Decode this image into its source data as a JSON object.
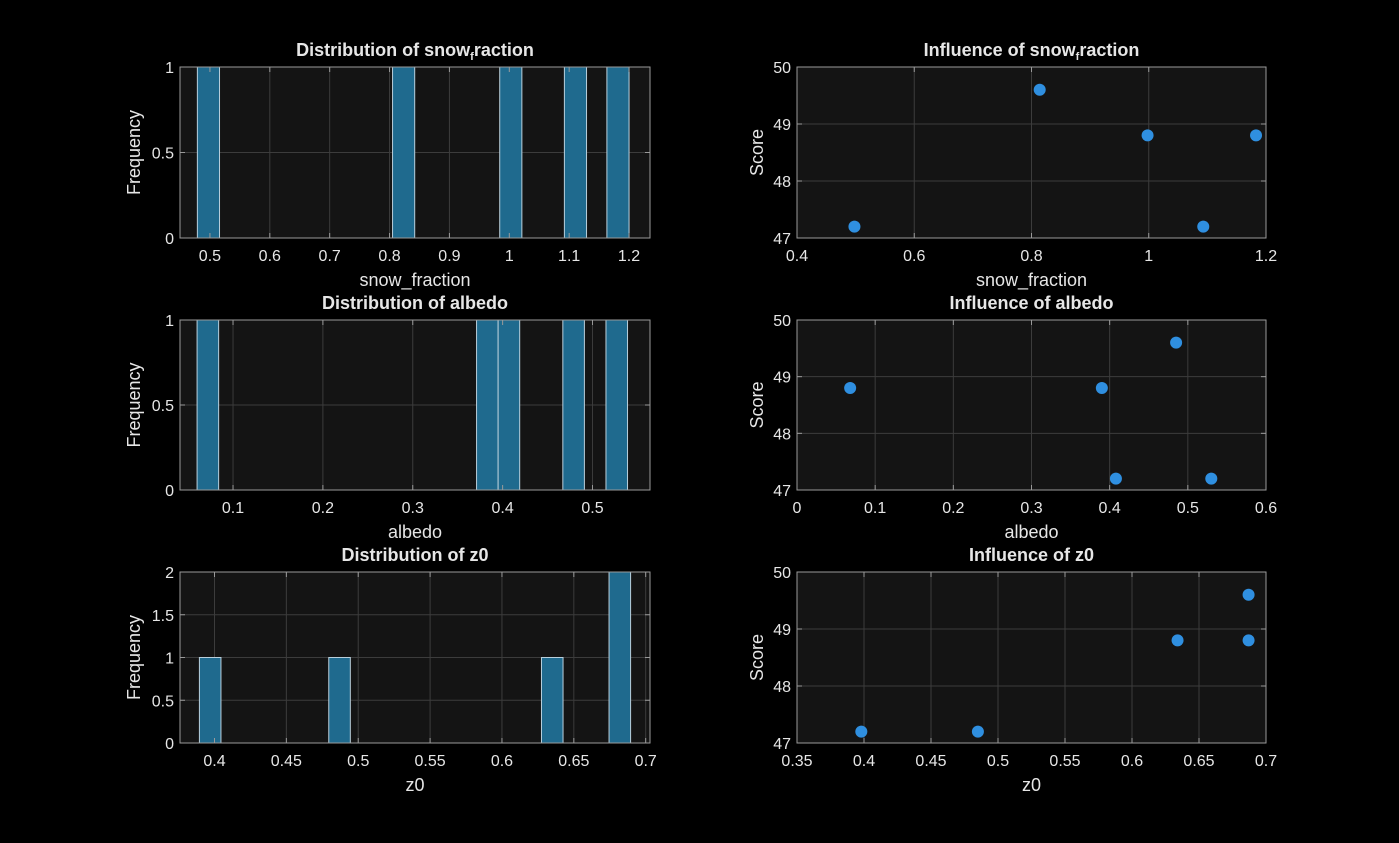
{
  "colors": {
    "figure_background": "#000000",
    "axes_background": "#141414",
    "grid": "#3c3c3c",
    "axes_edge": "#9a9a9a",
    "text": "#e6e6e6",
    "bar_face": "#1f6a8e",
    "bar_edge": "#b9cfdc",
    "marker": "#2f8fe0"
  },
  "chart_data": [
    {
      "type": "bar",
      "title": "Distribution  of  snow",
      "title_subscript": "f",
      "title_suffix": "raction",
      "xlabel": "snow_fraction",
      "ylabel": "Frequency",
      "xlim": [
        0.45,
        1.235
      ],
      "ylim": [
        0,
        1
      ],
      "xticks": [
        0.5,
        0.6,
        0.7,
        0.8,
        0.9,
        1,
        1.1,
        1.2
      ],
      "xtick_labels": [
        "0.5",
        "0.6",
        "0.7",
        "0.8",
        "0.9",
        "1",
        "1.1",
        "1.2"
      ],
      "yticks": [
        0,
        0.5,
        1
      ],
      "ytick_labels": [
        "0",
        "0.5",
        "1"
      ],
      "grid": true,
      "bins": [
        {
          "x0": 0.479,
          "x1": 0.516,
          "value": 1
        },
        {
          "x0": 0.805,
          "x1": 0.842,
          "value": 1
        },
        {
          "x0": 0.984,
          "x1": 1.021,
          "value": 1
        },
        {
          "x0": 1.092,
          "x1": 1.129,
          "value": 1
        },
        {
          "x0": 1.163,
          "x1": 1.2,
          "value": 1
        }
      ]
    },
    {
      "type": "scatter",
      "title": "Influence  of  snow",
      "title_subscript": "f",
      "title_suffix": "raction",
      "xlabel": "snow_fraction",
      "ylabel": "Score",
      "xlim": [
        0.4,
        1.2
      ],
      "ylim": [
        47,
        50
      ],
      "xticks": [
        0.4,
        0.6,
        0.8,
        1,
        1.2
      ],
      "xtick_labels": [
        "0.4",
        "0.6",
        "0.8",
        "1",
        "1.2"
      ],
      "yticks": [
        47,
        48,
        49,
        50
      ],
      "ytick_labels": [
        "47",
        "48",
        "49",
        "50"
      ],
      "grid": true,
      "points": [
        {
          "x": 0.498,
          "y": 47.2
        },
        {
          "x": 0.814,
          "y": 49.6
        },
        {
          "x": 0.998,
          "y": 48.8
        },
        {
          "x": 1.093,
          "y": 47.2
        },
        {
          "x": 1.183,
          "y": 48.8
        }
      ]
    },
    {
      "type": "bar",
      "title": "Distribution of albedo",
      "xlabel": "albedo",
      "ylabel": "Frequency",
      "xlim": [
        0.041,
        0.564
      ],
      "ylim": [
        0,
        1
      ],
      "xticks": [
        0.1,
        0.2,
        0.3,
        0.4,
        0.5
      ],
      "xtick_labels": [
        "0.1",
        "0.2",
        "0.3",
        "0.4",
        "0.5"
      ],
      "yticks": [
        0,
        0.5,
        1
      ],
      "ytick_labels": [
        "0",
        "0.5",
        "1"
      ],
      "grid": true,
      "bins": [
        {
          "x0": 0.06,
          "x1": 0.084,
          "value": 1
        },
        {
          "x0": 0.371,
          "x1": 0.395,
          "value": 1
        },
        {
          "x0": 0.395,
          "x1": 0.419,
          "value": 1
        },
        {
          "x0": 0.467,
          "x1": 0.491,
          "value": 1
        },
        {
          "x0": 0.515,
          "x1": 0.539,
          "value": 1
        }
      ]
    },
    {
      "type": "scatter",
      "title": "Influence of albedo",
      "xlabel": "albedo",
      "ylabel": "Score",
      "xlim": [
        0,
        0.6
      ],
      "ylim": [
        47,
        50
      ],
      "xticks": [
        0,
        0.1,
        0.2,
        0.3,
        0.4,
        0.5,
        0.6
      ],
      "xtick_labels": [
        "0",
        "0.1",
        "0.2",
        "0.3",
        "0.4",
        "0.5",
        "0.6"
      ],
      "yticks": [
        47,
        48,
        49,
        50
      ],
      "ytick_labels": [
        "47",
        "48",
        "49",
        "50"
      ],
      "grid": true,
      "points": [
        {
          "x": 0.068,
          "y": 48.8
        },
        {
          "x": 0.39,
          "y": 48.8
        },
        {
          "x": 0.408,
          "y": 47.2
        },
        {
          "x": 0.485,
          "y": 49.6
        },
        {
          "x": 0.53,
          "y": 47.2
        }
      ]
    },
    {
      "type": "bar",
      "title": "Distribution of z0",
      "xlabel": "z0",
      "ylabel": "Frequency",
      "xlim": [
        0.376,
        0.703
      ],
      "ylim": [
        0,
        2
      ],
      "xticks": [
        0.4,
        0.45,
        0.5,
        0.55,
        0.6,
        0.65,
        0.7
      ],
      "xtick_labels": [
        "0.4",
        "0.45",
        "0.5",
        "0.55",
        "0.6",
        "0.65",
        "0.7"
      ],
      "yticks": [
        0,
        0.5,
        1,
        1.5,
        2
      ],
      "ytick_labels": [
        "0",
        "0.5",
        "1",
        "1.5",
        "2"
      ],
      "grid": true,
      "bins": [
        {
          "x0": 0.3895,
          "x1": 0.4045,
          "value": 1
        },
        {
          "x0": 0.4795,
          "x1": 0.4945,
          "value": 1
        },
        {
          "x0": 0.6275,
          "x1": 0.6425,
          "value": 1
        },
        {
          "x0": 0.6745,
          "x1": 0.6895,
          "value": 2
        }
      ]
    },
    {
      "type": "scatter",
      "title": "Influence of z0",
      "xlabel": "z0",
      "ylabel": "Score",
      "xlim": [
        0.35,
        0.7
      ],
      "ylim": [
        47,
        50
      ],
      "xticks": [
        0.35,
        0.4,
        0.45,
        0.5,
        0.55,
        0.6,
        0.65,
        0.7
      ],
      "xtick_labels": [
        "0.35",
        "0.4",
        "0.45",
        "0.5",
        "0.55",
        "0.6",
        "0.65",
        "0.7"
      ],
      "yticks": [
        47,
        48,
        49,
        50
      ],
      "ytick_labels": [
        "47",
        "48",
        "49",
        "50"
      ],
      "grid": true,
      "points": [
        {
          "x": 0.398,
          "y": 47.2
        },
        {
          "x": 0.485,
          "y": 47.2
        },
        {
          "x": 0.634,
          "y": 48.8
        },
        {
          "x": 0.687,
          "y": 48.8
        },
        {
          "x": 0.687,
          "y": 49.6
        }
      ]
    }
  ]
}
